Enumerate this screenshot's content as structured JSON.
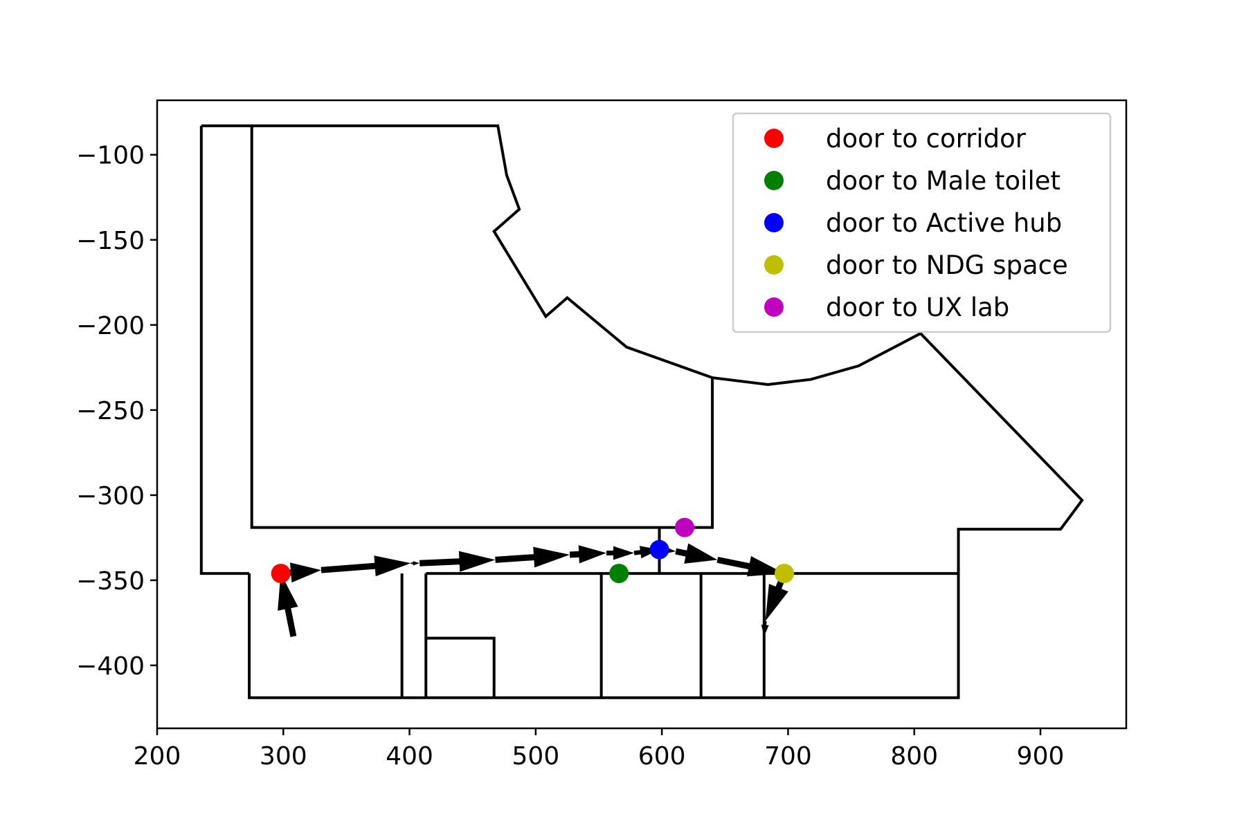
{
  "chart_data": {
    "type": "scatter",
    "title": "",
    "xlabel": "",
    "ylabel": "",
    "xlim": [
      200,
      968
    ],
    "ylim": [
      -437,
      -68
    ],
    "x_ticks": [
      200,
      300,
      400,
      500,
      600,
      700,
      800,
      900
    ],
    "y_ticks": [
      -100,
      -150,
      -200,
      -250,
      -300,
      -350,
      -400
    ],
    "x_tick_labels": [
      "200",
      "300",
      "400",
      "500",
      "600",
      "700",
      "800",
      "900"
    ],
    "y_tick_labels": [
      "−100",
      "−150",
      "−200",
      "−250",
      "−300",
      "−350",
      "−400"
    ],
    "grid": false,
    "legend_position": "top-right",
    "series": [
      {
        "name": "door to corridor",
        "color": "#ff0000",
        "x": [
          298
        ],
        "y": [
          -346
        ]
      },
      {
        "name": "door to Male toilet",
        "color": "#008000",
        "x": [
          566
        ],
        "y": [
          -346
        ]
      },
      {
        "name": "door to Active hub",
        "color": "#0000ff",
        "x": [
          598
        ],
        "y": [
          -332
        ]
      },
      {
        "name": "door to NDG space",
        "color": "#bfbf00",
        "x": [
          697
        ],
        "y": [
          -346
        ]
      },
      {
        "name": "door to UX lab",
        "color": "#bf00bf",
        "x": [
          618
        ],
        "y": [
          -319
        ]
      }
    ],
    "walls": [
      [
        [
          235,
          -83
        ],
        [
          470,
          -83
        ],
        [
          477,
          -112
        ],
        [
          487,
          -132
        ],
        [
          467,
          -145
        ],
        [
          508,
          -195
        ],
        [
          525,
          -184
        ],
        [
          572,
          -213
        ],
        [
          640,
          -231
        ],
        [
          684,
          -235
        ],
        [
          718,
          -232
        ],
        [
          756,
          -224
        ],
        [
          805,
          -205
        ],
        [
          933,
          -303
        ],
        [
          916,
          -320
        ],
        [
          835,
          -320
        ],
        [
          835,
          -346
        ]
      ],
      [
        [
          235,
          -83
        ],
        [
          235,
          -346
        ],
        [
          273,
          -346
        ]
      ],
      [
        [
          275,
          -83
        ],
        [
          275,
          -319
        ],
        [
          640,
          -319
        ],
        [
          640,
          -231
        ]
      ],
      [
        [
          598,
          -319
        ],
        [
          598,
          -346
        ]
      ],
      [
        [
          273,
          -346
        ],
        [
          273,
          -419
        ],
        [
          835,
          -419
        ],
        [
          835,
          -346
        ]
      ],
      [
        [
          394,
          -346
        ],
        [
          394,
          -419
        ]
      ],
      [
        [
          413,
          -346
        ],
        [
          413,
          -419
        ]
      ],
      [
        [
          413,
          -346
        ],
        [
          835,
          -346
        ]
      ],
      [
        [
          413,
          -384
        ],
        [
          467,
          -384
        ],
        [
          467,
          -419
        ]
      ],
      [
        [
          552,
          -346
        ],
        [
          552,
          -419
        ]
      ],
      [
        [
          631,
          -346
        ],
        [
          631,
          -419
        ]
      ],
      [
        [
          681,
          -346
        ],
        [
          681,
          -419
        ]
      ]
    ],
    "arrows": [
      [
        [
          308,
          -383
        ],
        [
          298,
          -346
        ]
      ],
      [
        [
          298,
          -346
        ],
        [
          330,
          -344
        ]
      ],
      [
        [
          330,
          -344
        ],
        [
          401,
          -340
        ]
      ],
      [
        [
          401,
          -340
        ],
        [
          408,
          -340
        ]
      ],
      [
        [
          408,
          -340
        ],
        [
          468,
          -338
        ]
      ],
      [
        [
          468,
          -338
        ],
        [
          527,
          -335
        ]
      ],
      [
        [
          527,
          -335
        ],
        [
          556,
          -334
        ]
      ],
      [
        [
          556,
          -334
        ],
        [
          578,
          -334
        ]
      ],
      [
        [
          578,
          -334
        ],
        [
          598,
          -332
        ]
      ],
      [
        [
          598,
          -332
        ],
        [
          611,
          -333
        ]
      ],
      [
        [
          611,
          -333
        ],
        [
          644,
          -338
        ]
      ],
      [
        [
          644,
          -338
        ],
        [
          697,
          -346
        ]
      ],
      [
        [
          697,
          -346
        ],
        [
          682,
          -374
        ]
      ],
      [
        [
          682,
          -374
        ],
        [
          681,
          -383
        ]
      ]
    ]
  }
}
